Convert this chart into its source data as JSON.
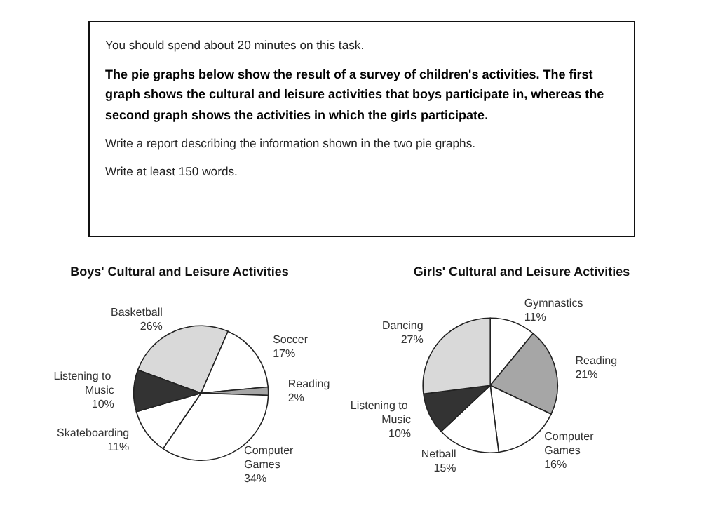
{
  "chart_data": [
    {
      "type": "other",
      "annotations": [
        "You should spend about 20 minutes on this task.",
        "The pie graphs below show the result of a survey of children's activities. The first graph shows the cultural and leisure activities that boys participate in, whereas the second graph shows the activities in which the girls participate.",
        "Write a report describing the information shown in the two pie graphs.",
        "Write at least 150 words."
      ]
    },
    {
      "type": "pie",
      "title": "Boys' Cultural and Leisure Activities",
      "categories": [
        "Basketball",
        "Soccer",
        "Reading",
        "Computer Games",
        "Skateboarding",
        "Listening to Music"
      ],
      "values": [
        26,
        17,
        2,
        34,
        11,
        10
      ],
      "colors": [
        "#d9d9d9",
        "#ffffff",
        "#a6a6a6",
        "#ffffff",
        "#ffffff",
        "#333333"
      ],
      "value_labels": [
        "26%",
        "17%",
        "2%",
        "34%",
        "11%",
        "10%"
      ]
    },
    {
      "type": "pie",
      "title": "Girls' Cultural and Leisure Activities",
      "categories": [
        "Gymnastics",
        "Reading",
        "Computer Games",
        "Netball",
        "Listening to Music",
        "Dancing"
      ],
      "values": [
        11,
        21,
        16,
        15,
        10,
        27
      ],
      "colors": [
        "#ffffff",
        "#a6a6a6",
        "#ffffff",
        "#ffffff",
        "#333333",
        "#d9d9d9"
      ],
      "value_labels": [
        "11%",
        "21%",
        "16%",
        "15%",
        "10%",
        "27%"
      ]
    }
  ]
}
